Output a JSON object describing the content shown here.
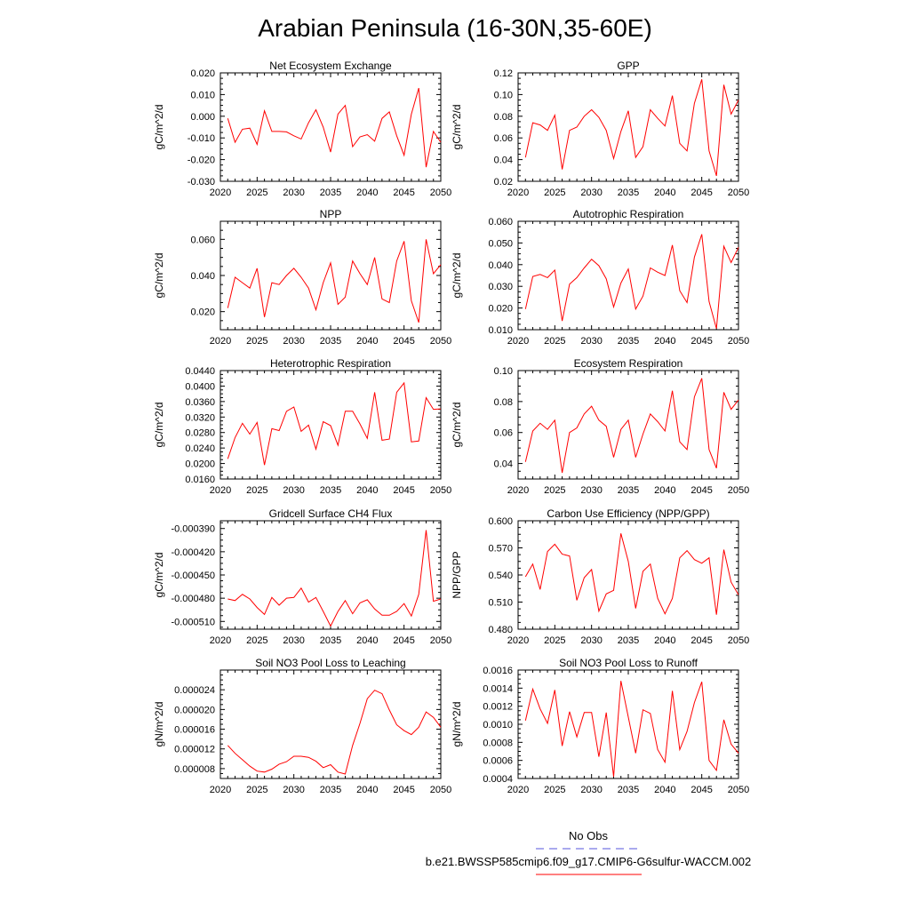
{
  "figure": {
    "title": "Arabian Peninsula (16-30N,35-60E)",
    "line_color": "#ff0000",
    "legend": {
      "obs_label": "No Obs",
      "obs_color": "#5555dd",
      "model_label": "b.e21.BWSSP585cmip6.f09_g17.CMIP6-G6sulfur-WACCM.002",
      "model_color": "#ff0000"
    }
  },
  "chart_data": [
    {
      "type": "line",
      "title": "Net Ecosystem Exchange",
      "ylabel": "gC/m^2/d",
      "xlim": [
        2020,
        2050
      ],
      "ylim": [
        -0.03,
        0.02
      ],
      "xticks": [
        2020,
        2025,
        2030,
        2035,
        2040,
        2045,
        2050
      ],
      "yticks": [
        -0.03,
        -0.02,
        -0.01,
        0.0,
        0.01,
        0.02
      ],
      "ytick_labels": [
        "-0.030",
        "-0.020",
        "-0.010",
        "0.000",
        "0.010",
        "0.020"
      ],
      "x": [
        2021,
        2022,
        2023,
        2024,
        2025,
        2026,
        2027,
        2028,
        2029,
        2030,
        2031,
        2032,
        2033,
        2034,
        2035,
        2036,
        2037,
        2038,
        2039,
        2040,
        2041,
        2042,
        2043,
        2044,
        2045,
        2046,
        2047,
        2048,
        2049,
        2050
      ],
      "y": [
        -0.001,
        -0.012,
        -0.006,
        -0.0055,
        -0.013,
        0.0025,
        -0.007,
        -0.007,
        -0.0072,
        -0.009,
        -0.0105,
        -0.003,
        0.003,
        -0.005,
        -0.0165,
        0.001,
        0.005,
        -0.014,
        -0.0095,
        -0.0085,
        -0.0115,
        -0.001,
        0.002,
        -0.009,
        -0.018,
        0.001,
        0.013,
        -0.0235,
        -0.007,
        -0.012
      ]
    },
    {
      "type": "line",
      "title": "GPP",
      "ylabel": "gC/m^2/d",
      "xlim": [
        2020,
        2050
      ],
      "ylim": [
        0.02,
        0.12
      ],
      "xticks": [
        2020,
        2025,
        2030,
        2035,
        2040,
        2045,
        2050
      ],
      "yticks": [
        0.02,
        0.04,
        0.06,
        0.08,
        0.1,
        0.12
      ],
      "ytick_labels": [
        "0.02",
        "0.04",
        "0.06",
        "0.08",
        "0.10",
        "0.12"
      ],
      "x": [
        2021,
        2022,
        2023,
        2024,
        2025,
        2026,
        2027,
        2028,
        2029,
        2030,
        2031,
        2032,
        2033,
        2034,
        2035,
        2036,
        2037,
        2038,
        2039,
        2040,
        2041,
        2042,
        2043,
        2044,
        2045,
        2046,
        2047,
        2048,
        2049,
        2050
      ],
      "y": [
        0.042,
        0.074,
        0.072,
        0.067,
        0.081,
        0.031,
        0.067,
        0.07,
        0.08,
        0.086,
        0.079,
        0.067,
        0.041,
        0.066,
        0.085,
        0.042,
        0.052,
        0.086,
        0.078,
        0.071,
        0.099,
        0.055,
        0.048,
        0.092,
        0.114,
        0.048,
        0.025,
        0.109,
        0.082,
        0.095
      ]
    },
    {
      "type": "line",
      "title": "NPP",
      "ylabel": "gC/m^2/d",
      "xlim": [
        2020,
        2050
      ],
      "ylim": [
        0.01,
        0.07
      ],
      "xticks": [
        2020,
        2025,
        2030,
        2035,
        2040,
        2045,
        2050
      ],
      "yticks": [
        0.02,
        0.04,
        0.06
      ],
      "ytick_labels": [
        "0.020",
        "0.040",
        "0.060"
      ],
      "x": [
        2021,
        2022,
        2023,
        2024,
        2025,
        2026,
        2027,
        2028,
        2029,
        2030,
        2031,
        2032,
        2033,
        2034,
        2035,
        2036,
        2037,
        2038,
        2039,
        2040,
        2041,
        2042,
        2043,
        2044,
        2045,
        2046,
        2047,
        2048,
        2049,
        2050
      ],
      "y": [
        0.022,
        0.039,
        0.036,
        0.033,
        0.044,
        0.017,
        0.036,
        0.035,
        0.04,
        0.044,
        0.039,
        0.033,
        0.021,
        0.036,
        0.047,
        0.024,
        0.028,
        0.048,
        0.041,
        0.035,
        0.05,
        0.027,
        0.025,
        0.048,
        0.059,
        0.026,
        0.014,
        0.06,
        0.041,
        0.046
      ]
    },
    {
      "type": "line",
      "title": "Autotrophic Respiration",
      "ylabel": "gC/m^2/d",
      "xlim": [
        2020,
        2050
      ],
      "ylim": [
        0.01,
        0.06
      ],
      "xticks": [
        2020,
        2025,
        2030,
        2035,
        2040,
        2045,
        2050
      ],
      "yticks": [
        0.01,
        0.02,
        0.03,
        0.04,
        0.05,
        0.06
      ],
      "ytick_labels": [
        "0.010",
        "0.020",
        "0.030",
        "0.040",
        "0.050",
        "0.060"
      ],
      "x": [
        2021,
        2022,
        2023,
        2024,
        2025,
        2026,
        2027,
        2028,
        2029,
        2030,
        2031,
        2032,
        2033,
        2034,
        2035,
        2036,
        2037,
        2038,
        2039,
        2040,
        2041,
        2042,
        2043,
        2044,
        2045,
        2046,
        2047,
        2048,
        2049,
        2050
      ],
      "y": [
        0.0195,
        0.0345,
        0.0355,
        0.034,
        0.0375,
        0.014,
        0.031,
        0.034,
        0.0385,
        0.0425,
        0.0395,
        0.0335,
        0.0205,
        0.0315,
        0.038,
        0.0195,
        0.0255,
        0.0385,
        0.0365,
        0.035,
        0.049,
        0.028,
        0.0225,
        0.0435,
        0.054,
        0.023,
        0.0105,
        0.0485,
        0.041,
        0.048
      ]
    },
    {
      "type": "line",
      "title": "Heterotrophic Respiration",
      "ylabel": "gC/m^2/d",
      "xlim": [
        2020,
        2050
      ],
      "ylim": [
        0.016,
        0.044
      ],
      "xticks": [
        2020,
        2025,
        2030,
        2035,
        2040,
        2045,
        2050
      ],
      "yticks": [
        0.016,
        0.02,
        0.024,
        0.028,
        0.032,
        0.036,
        0.04,
        0.044
      ],
      "ytick_labels": [
        "0.0160",
        "0.0200",
        "0.0240",
        "0.0280",
        "0.0320",
        "0.0360",
        "0.0400",
        "0.0440"
      ],
      "x": [
        2021,
        2022,
        2023,
        2024,
        2025,
        2026,
        2027,
        2028,
        2029,
        2030,
        2031,
        2032,
        2033,
        2034,
        2035,
        2036,
        2037,
        2038,
        2039,
        2040,
        2041,
        2042,
        2043,
        2044,
        2045,
        2046,
        2047,
        2048,
        2049,
        2050
      ],
      "y": [
        0.0212,
        0.0267,
        0.0304,
        0.0276,
        0.0306,
        0.0196,
        0.029,
        0.0285,
        0.0335,
        0.0346,
        0.0283,
        0.0299,
        0.0237,
        0.0308,
        0.0298,
        0.0247,
        0.0335,
        0.0335,
        0.0302,
        0.0265,
        0.0384,
        0.026,
        0.0263,
        0.0384,
        0.0408,
        0.0256,
        0.0258,
        0.037,
        0.034,
        0.0341
      ]
    },
    {
      "type": "line",
      "title": "Ecosystem Respiration",
      "ylabel": "gC/m^2/d",
      "xlim": [
        2020,
        2050
      ],
      "ylim": [
        0.03,
        0.1
      ],
      "xticks": [
        2020,
        2025,
        2030,
        2035,
        2040,
        2045,
        2050
      ],
      "yticks": [
        0.04,
        0.06,
        0.08,
        0.1
      ],
      "ytick_labels": [
        "0.04",
        "0.06",
        "0.08",
        "0.10"
      ],
      "x": [
        2021,
        2022,
        2023,
        2024,
        2025,
        2026,
        2027,
        2028,
        2029,
        2030,
        2031,
        2032,
        2033,
        2034,
        2035,
        2036,
        2037,
        2038,
        2039,
        2040,
        2041,
        2042,
        2043,
        2044,
        2045,
        2046,
        2047,
        2048,
        2049,
        2050
      ],
      "y": [
        0.041,
        0.061,
        0.066,
        0.062,
        0.068,
        0.034,
        0.06,
        0.063,
        0.072,
        0.077,
        0.068,
        0.064,
        0.044,
        0.062,
        0.068,
        0.044,
        0.059,
        0.072,
        0.067,
        0.061,
        0.087,
        0.054,
        0.049,
        0.083,
        0.095,
        0.049,
        0.037,
        0.086,
        0.075,
        0.081
      ]
    },
    {
      "type": "line",
      "title": "Gridcell Surface CH4 Flux",
      "ylabel": "gC/m^2/d",
      "xlim": [
        2020,
        2050
      ],
      "ylim": [
        -0.00052,
        -0.00038
      ],
      "xticks": [
        2020,
        2025,
        2030,
        2035,
        2040,
        2045,
        2050
      ],
      "yticks": [
        -0.00051,
        -0.00048,
        -0.00045,
        -0.00042,
        -0.00039
      ],
      "ytick_labels": [
        "-0.000510",
        "-0.000480",
        "-0.000450",
        "-0.000420",
        "-0.000390"
      ],
      "x": [
        2021,
        2022,
        2023,
        2024,
        2025,
        2026,
        2027,
        2028,
        2029,
        2030,
        2031,
        2032,
        2033,
        2034,
        2035,
        2036,
        2037,
        2038,
        2039,
        2040,
        2041,
        2042,
        2043,
        2044,
        2045,
        2046,
        2047,
        2048,
        2049,
        2050
      ],
      "y": [
        -0.000481,
        -0.000483,
        -0.000475,
        -0.000481,
        -0.000492,
        -0.000501,
        -0.000479,
        -0.000489,
        -0.00048,
        -0.000479,
        -0.000467,
        -0.000485,
        -0.000479,
        -0.000497,
        -0.000516,
        -0.000497,
        -0.000483,
        -0.0005,
        -0.000486,
        -0.000482,
        -0.000494,
        -0.000502,
        -0.000502,
        -0.000497,
        -0.000487,
        -0.000503,
        -0.000475,
        -0.000392,
        -0.000484,
        -0.000481
      ]
    },
    {
      "type": "line",
      "title": "Carbon Use Efficiency (NPP/GPP)",
      "ylabel": "NPP/GPP",
      "xlim": [
        2020,
        2050
      ],
      "ylim": [
        0.48,
        0.6
      ],
      "xticks": [
        2020,
        2025,
        2030,
        2035,
        2040,
        2045,
        2050
      ],
      "yticks": [
        0.48,
        0.51,
        0.54,
        0.57,
        0.6
      ],
      "ytick_labels": [
        "0.480",
        "0.510",
        "0.540",
        "0.570",
        "0.600"
      ],
      "x": [
        2021,
        2022,
        2023,
        2024,
        2025,
        2026,
        2027,
        2028,
        2029,
        2030,
        2031,
        2032,
        2033,
        2034,
        2035,
        2036,
        2037,
        2038,
        2039,
        2040,
        2041,
        2042,
        2043,
        2044,
        2045,
        2046,
        2047,
        2048,
        2049,
        2050
      ],
      "y": [
        0.538,
        0.552,
        0.524,
        0.566,
        0.574,
        0.563,
        0.561,
        0.512,
        0.537,
        0.546,
        0.5,
        0.519,
        0.523,
        0.586,
        0.555,
        0.503,
        0.544,
        0.552,
        0.514,
        0.497,
        0.514,
        0.559,
        0.567,
        0.557,
        0.553,
        0.559,
        0.496,
        0.568,
        0.532,
        0.518
      ]
    },
    {
      "type": "line",
      "title": "Soil NO3 Pool Loss to Leaching",
      "ylabel": "gN/m^2/d",
      "xlim": [
        2020,
        2050
      ],
      "ylim": [
        6e-06,
        2.8e-05
      ],
      "xticks": [
        2020,
        2025,
        2030,
        2035,
        2040,
        2045,
        2050
      ],
      "yticks": [
        8e-06,
        1.2e-05,
        1.6e-05,
        2e-05,
        2.4e-05
      ],
      "ytick_labels": [
        "0.000008",
        "0.000012",
        "0.000016",
        "0.000020",
        "0.000024"
      ],
      "x": [
        2021,
        2022,
        2023,
        2024,
        2025,
        2026,
        2027,
        2028,
        2029,
        2030,
        2031,
        2032,
        2033,
        2034,
        2035,
        2036,
        2037,
        2038,
        2039,
        2040,
        2041,
        2042,
        2043,
        2044,
        2045,
        2046,
        2047,
        2048,
        2049,
        2050
      ],
      "y": [
        1.27e-05,
        1.11e-05,
        9.8e-06,
        8.5e-06,
        7.5e-06,
        7.3e-06,
        7.9e-06,
        8.9e-06,
        9.4e-06,
        1.05e-05,
        1.05e-05,
        1.03e-05,
        9.5e-06,
        8.2e-06,
        8.8e-06,
        7.3e-06,
        6.9e-06,
        1.27e-05,
        1.72e-05,
        2.22e-05,
        2.39e-05,
        2.32e-05,
        1.99e-05,
        1.69e-05,
        1.57e-05,
        1.49e-05,
        1.64e-05,
        1.95e-05,
        1.84e-05,
        1.64e-05
      ]
    },
    {
      "type": "line",
      "title": "Soil NO3 Pool Loss to Runoff",
      "ylabel": "gN/m^2/d",
      "xlim": [
        2020,
        2050
      ],
      "ylim": [
        0.0004,
        0.0016
      ],
      "xticks": [
        2020,
        2025,
        2030,
        2035,
        2040,
        2045,
        2050
      ],
      "yticks": [
        0.0004,
        0.0006,
        0.0008,
        0.001,
        0.0012,
        0.0014,
        0.0016
      ],
      "ytick_labels": [
        "0.0004",
        "0.0006",
        "0.0008",
        "0.0010",
        "0.0012",
        "0.0014",
        "0.0016"
      ],
      "x": [
        2021,
        2022,
        2023,
        2024,
        2025,
        2026,
        2027,
        2028,
        2029,
        2030,
        2031,
        2032,
        2033,
        2034,
        2035,
        2036,
        2037,
        2038,
        2039,
        2040,
        2041,
        2042,
        2043,
        2044,
        2045,
        2046,
        2047,
        2048,
        2049,
        2050
      ],
      "y": [
        0.00104,
        0.00139,
        0.00117,
        0.00101,
        0.00138,
        0.00076,
        0.00114,
        0.00086,
        0.00113,
        0.00113,
        0.00064,
        0.00113,
        0.00042,
        0.00148,
        0.00108,
        0.00068,
        0.00116,
        0.00112,
        0.00072,
        0.00058,
        0.00137,
        0.00072,
        0.00092,
        0.00124,
        0.00147,
        0.0006,
        0.00049,
        0.00105,
        0.00078,
        0.00068
      ]
    }
  ]
}
